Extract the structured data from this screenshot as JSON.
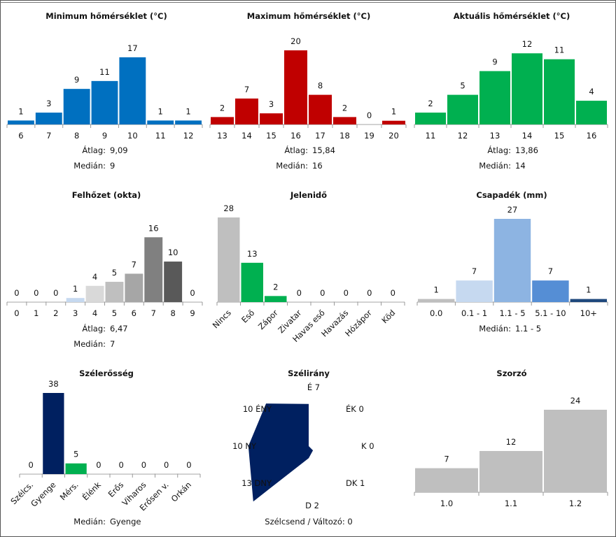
{
  "chart_data": [
    {
      "type": "bar",
      "title": "Minimum hőmérséklet (°C)",
      "categories": [
        "6",
        "7",
        "8",
        "9",
        "10",
        "11",
        "12"
      ],
      "values": [
        1,
        3,
        9,
        11,
        17,
        1,
        1
      ],
      "colors": [
        "#0070c0",
        "#0070c0",
        "#0070c0",
        "#0070c0",
        "#0070c0",
        "#0070c0",
        "#0070c0"
      ],
      "ylim": [
        0,
        20
      ],
      "stats": [
        {
          "label": "Átlag:",
          "value": "9,09"
        },
        {
          "label": "Medián:",
          "value": "9"
        }
      ]
    },
    {
      "type": "bar",
      "title": "Maximum hőmérséklet (°C)",
      "categories": [
        "13",
        "14",
        "15",
        "16",
        "17",
        "18",
        "19",
        "20"
      ],
      "values": [
        2,
        7,
        3,
        20,
        8,
        2,
        0,
        1
      ],
      "colors": [
        "#c00000",
        "#c00000",
        "#c00000",
        "#c00000",
        "#c00000",
        "#c00000",
        "#c00000",
        "#c00000"
      ],
      "ylim": [
        0,
        20
      ],
      "stats": [
        {
          "label": "Átlag:",
          "value": "15,84"
        },
        {
          "label": "Medián:",
          "value": "16"
        }
      ]
    },
    {
      "type": "bar",
      "title": "Aktuális hőmérséklet (°C)",
      "categories": [
        "11",
        "12",
        "13",
        "14",
        "15",
        "16"
      ],
      "values": [
        2,
        5,
        9,
        12,
        11,
        4
      ],
      "colors": [
        "#00b050",
        "#00b050",
        "#00b050",
        "#00b050",
        "#00b050",
        "#00b050"
      ],
      "ylim": [
        0,
        12.5
      ],
      "stats": [
        {
          "label": "Átlag:",
          "value": "13,86"
        },
        {
          "label": "Medián:",
          "value": "14"
        }
      ]
    },
    {
      "type": "bar",
      "title": "Felhőzet (okta)",
      "categories": [
        "0",
        "1",
        "2",
        "3",
        "4",
        "5",
        "6",
        "7",
        "8",
        "9"
      ],
      "values": [
        0,
        0,
        0,
        1,
        4,
        5,
        7,
        16,
        10,
        0
      ],
      "colors": [
        "#bfbfbf",
        "#bfbfbf",
        "#bfbfbf",
        "#c6d9f0",
        "#d9d9d9",
        "#bfbfbf",
        "#a6a6a6",
        "#808080",
        "#595959",
        "#bfbfbf"
      ],
      "ylim": [
        0,
        18.3
      ],
      "stats": [
        {
          "label": "Átlag:",
          "value": "6,47"
        },
        {
          "label": "Medián:",
          "value": "7"
        }
      ]
    },
    {
      "type": "bar",
      "title": "Jelenidő",
      "categories": [
        "Nincs",
        "Eső",
        "Zápor",
        "Zivatar",
        "Havas eső",
        "Havazás",
        "Hózápor",
        "Köd"
      ],
      "values": [
        28,
        13,
        2,
        0,
        0,
        0,
        0,
        0
      ],
      "colors": [
        "#bfbfbf",
        "#00b050",
        "#00b050",
        "#bfbfbf",
        "#bfbfbf",
        "#bfbfbf",
        "#bfbfbf",
        "#bfbfbf"
      ],
      "ylim": [
        0,
        28
      ],
      "rotate": true,
      "stats": []
    },
    {
      "type": "bar",
      "title": "Csapadék (mm)",
      "categories": [
        "0.0",
        "0.1 - 1",
        "1.1 - 5",
        "5.1 - 10",
        "10+"
      ],
      "values": [
        1,
        7,
        27,
        7,
        1
      ],
      "colors": [
        "#bfbfbf",
        "#c6d9f0",
        "#8db4e2",
        "#558ed5",
        "#1f497d"
      ],
      "ylim": [
        0,
        27
      ],
      "stats": [
        {
          "label": "Medián:",
          "value": "1.1 - 5"
        }
      ]
    },
    {
      "type": "bar",
      "title": "Szélerősség",
      "categories": [
        "Szélcs.",
        "Gyenge",
        "Mérs.",
        "Élénk",
        "Erős",
        "Viharos",
        "Erősen v.",
        "Orkán"
      ],
      "values": [
        0,
        38,
        5,
        0,
        0,
        0,
        0,
        0
      ],
      "colors": [
        "#bfbfbf",
        "#002060",
        "#00b050",
        "#bfbfbf",
        "#bfbfbf",
        "#bfbfbf",
        "#bfbfbf",
        "#bfbfbf"
      ],
      "ylim": [
        0,
        38
      ],
      "rotate": true,
      "stats": [
        {
          "label": "Medián:",
          "value": "Gyenge"
        }
      ]
    },
    {
      "type": "radar",
      "title": "Szélirány",
      "directions": [
        "É",
        "ÉK",
        "K",
        "DK",
        "D",
        "DNY",
        "NY",
        "ÉNY"
      ],
      "values": [
        7,
        0,
        0,
        1,
        2,
        13,
        10,
        10
      ],
      "max": 13,
      "color": "#002060",
      "footer": "Szélcsend / Változó: 0"
    },
    {
      "type": "bar",
      "title": "Szorzó",
      "categories": [
        "1.0",
        "1.1",
        "1.2"
      ],
      "values": [
        7,
        12,
        24
      ],
      "colors": [
        "#bfbfbf",
        "#bfbfbf",
        "#bfbfbf"
      ],
      "ylim": [
        0,
        24
      ],
      "stats": []
    }
  ]
}
